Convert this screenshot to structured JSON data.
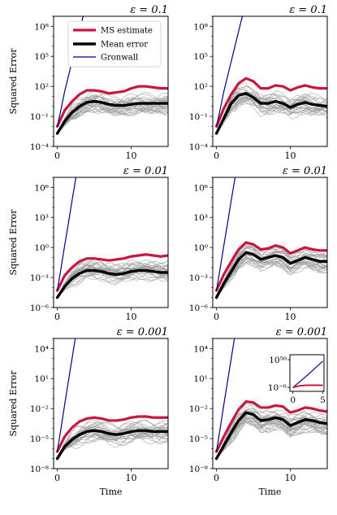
{
  "figure": {
    "ylabel": "Squared Error",
    "xlabel": "Time",
    "legend": [
      "MS estimate",
      "Mean error",
      "Gronwall"
    ],
    "colors": {
      "ms": "#c8173f",
      "mean": "#000000",
      "gronwall": "#00008b",
      "traj": "#999999"
    }
  },
  "chart_data": [
    {
      "type": "line",
      "row": 0,
      "col": 0,
      "title": "ε = 0.1",
      "xlim": [
        -0.5,
        15
      ],
      "ylim_log10": [
        -4,
        9
      ],
      "xticks": [
        0,
        10
      ],
      "xticklabels": [
        "0",
        "10"
      ],
      "yticks_log10": [
        -4,
        -1,
        2,
        5,
        8
      ],
      "yticklabels": [
        "10⁻⁴",
        "10⁻¹",
        "10²",
        "10⁵",
        "10⁸"
      ],
      "legend": true,
      "ylabel": true,
      "xlabel": false,
      "series": [
        {
          "name": "MS estimate",
          "x": [
            0,
            1,
            2,
            3,
            4,
            5,
            6,
            7,
            8,
            9,
            10,
            11,
            12,
            13,
            14,
            15
          ],
          "log10_y": [
            -2.0,
            -0.4,
            0.5,
            1.2,
            1.6,
            1.6,
            1.5,
            1.3,
            1.4,
            1.5,
            1.8,
            2.0,
            2.0,
            1.9,
            1.8,
            1.8
          ]
        },
        {
          "name": "Mean error",
          "x": [
            0,
            1,
            2,
            3,
            4,
            5,
            6,
            7,
            8,
            9,
            10,
            11,
            12,
            13,
            14,
            15
          ],
          "log10_y": [
            -2.7,
            -1.5,
            -0.6,
            0.0,
            0.4,
            0.5,
            0.4,
            0.2,
            0.1,
            0.1,
            0.2,
            0.3,
            0.3,
            0.3,
            0.3,
            0.3
          ]
        },
        {
          "name": "Gronwall",
          "x": [
            0,
            0.5,
            1,
            1.5,
            2,
            2.5,
            3,
            3.5,
            4
          ],
          "log10_y": [
            -2.0,
            -0.3,
            1.5,
            3.0,
            4.5,
            6.0,
            7.5,
            9.0,
            10.5
          ]
        }
      ]
    },
    {
      "type": "line",
      "row": 0,
      "col": 1,
      "title": "ε = 0.1",
      "xlim": [
        -0.5,
        15
      ],
      "ylim_log10": [
        -4,
        9
      ],
      "xticks": [
        0,
        10
      ],
      "xticklabels": [
        "0",
        "10"
      ],
      "yticks_log10": [
        -4,
        -1,
        2,
        5,
        8
      ],
      "yticklabels": [
        "10⁻⁴",
        "10⁻¹",
        "10²",
        "10⁵",
        "10⁸"
      ],
      "legend": false,
      "ylabel": false,
      "xlabel": false,
      "series": [
        {
          "name": "MS estimate",
          "x": [
            0,
            1,
            2,
            3,
            4,
            5,
            6,
            7,
            8,
            9,
            10,
            11,
            12,
            13,
            14,
            15
          ],
          "log10_y": [
            -2.0,
            -0.2,
            1.2,
            2.3,
            2.8,
            2.5,
            1.8,
            1.8,
            2.1,
            2.0,
            1.6,
            1.9,
            2.1,
            1.9,
            1.8,
            1.8
          ]
        },
        {
          "name": "Mean error",
          "x": [
            0,
            1,
            2,
            3,
            4,
            5,
            6,
            7,
            8,
            9,
            10,
            11,
            12,
            13,
            14,
            15
          ],
          "log10_y": [
            -2.7,
            -1.2,
            0.3,
            1.1,
            1.3,
            0.9,
            0.3,
            0.3,
            0.5,
            0.3,
            -0.1,
            0.2,
            0.4,
            0.2,
            0.1,
            0.0
          ]
        },
        {
          "name": "Gronwall",
          "x": [
            0,
            0.5,
            1,
            1.5,
            2,
            2.5,
            3,
            3.5,
            4
          ],
          "log10_y": [
            -2.0,
            -0.3,
            1.5,
            3.0,
            4.5,
            6.0,
            7.5,
            9.0,
            10.5
          ]
        }
      ]
    },
    {
      "type": "line",
      "row": 1,
      "col": 0,
      "title": "ε = 0.01",
      "xlim": [
        -0.5,
        15
      ],
      "ylim_log10": [
        -6,
        7
      ],
      "xticks": [
        0,
        10
      ],
      "xticklabels": [
        "0",
        "10"
      ],
      "yticks_log10": [
        -6,
        -3,
        0,
        3,
        6
      ],
      "yticklabels": [
        "10⁻⁶",
        "10⁻³",
        "10⁰",
        "10³",
        "10⁶"
      ],
      "legend": false,
      "ylabel": true,
      "xlabel": false,
      "series": [
        {
          "name": "MS estimate",
          "x": [
            0,
            1,
            2,
            3,
            4,
            5,
            6,
            7,
            8,
            9,
            10,
            11,
            12,
            13,
            14,
            15
          ],
          "log10_y": [
            -4.3,
            -2.8,
            -2.0,
            -1.4,
            -1.1,
            -1.1,
            -1.2,
            -1.3,
            -1.2,
            -1.1,
            -0.9,
            -0.8,
            -0.7,
            -0.8,
            -0.9,
            -0.8
          ]
        },
        {
          "name": "Mean error",
          "x": [
            0,
            1,
            2,
            3,
            4,
            5,
            6,
            7,
            8,
            9,
            10,
            11,
            12,
            13,
            14,
            15
          ],
          "log10_y": [
            -5.0,
            -3.9,
            -3.1,
            -2.6,
            -2.3,
            -2.3,
            -2.4,
            -2.6,
            -2.7,
            -2.6,
            -2.4,
            -2.3,
            -2.3,
            -2.4,
            -2.5,
            -2.5
          ]
        },
        {
          "name": "Gronwall",
          "x": [
            0,
            0.5,
            1,
            1.5,
            2,
            2.5,
            3
          ],
          "log10_y": [
            -4.3,
            -2.1,
            0.2,
            2.4,
            4.7,
            6.9,
            9.2
          ]
        }
      ]
    },
    {
      "type": "line",
      "row": 1,
      "col": 1,
      "title": "ε = 0.01",
      "xlim": [
        -0.5,
        15
      ],
      "ylim_log10": [
        -6,
        7
      ],
      "xticks": [
        0,
        10
      ],
      "xticklabels": [
        "0",
        "10"
      ],
      "yticks_log10": [
        -6,
        -3,
        0,
        3,
        6
      ],
      "yticklabels": [
        "10⁻⁶",
        "10⁻³",
        "10⁰",
        "10³",
        "10⁶"
      ],
      "legend": false,
      "ylabel": false,
      "xlabel": false,
      "series": [
        {
          "name": "MS estimate",
          "x": [
            0,
            1,
            2,
            3,
            4,
            5,
            6,
            7,
            8,
            9,
            10,
            11,
            12,
            13,
            14,
            15
          ],
          "log10_y": [
            -4.3,
            -2.7,
            -1.4,
            -0.2,
            0.5,
            0.3,
            -0.2,
            -0.1,
            0.2,
            0.0,
            -0.6,
            -0.3,
            0.0,
            -0.2,
            -0.3,
            -0.3
          ]
        },
        {
          "name": "Mean error",
          "x": [
            0,
            1,
            2,
            3,
            4,
            5,
            6,
            7,
            8,
            9,
            10,
            11,
            12,
            13,
            14,
            15
          ],
          "log10_y": [
            -5.0,
            -3.6,
            -2.4,
            -1.2,
            -0.5,
            -0.7,
            -1.2,
            -1.0,
            -0.8,
            -1.0,
            -1.6,
            -1.3,
            -1.0,
            -1.2,
            -1.4,
            -1.4
          ]
        },
        {
          "name": "Gronwall",
          "x": [
            0,
            0.5,
            1,
            1.5,
            2,
            2.5,
            3
          ],
          "log10_y": [
            -4.3,
            -2.1,
            0.2,
            2.4,
            4.7,
            6.9,
            9.2
          ]
        }
      ]
    },
    {
      "type": "line",
      "row": 2,
      "col": 0,
      "title": "ε = 0.001",
      "xlim": [
        -0.5,
        15
      ],
      "ylim_log10": [
        -8,
        5
      ],
      "xticks": [
        0,
        10
      ],
      "xticklabels": [
        "0",
        "10"
      ],
      "yticks_log10": [
        -8,
        -5,
        -2,
        1,
        4
      ],
      "yticklabels": [
        "10⁻⁸",
        "10⁻⁵",
        "10⁻²",
        "10¹",
        "10⁴"
      ],
      "legend": false,
      "ylabel": true,
      "xlabel": true,
      "series": [
        {
          "name": "MS estimate",
          "x": [
            0,
            1,
            2,
            3,
            4,
            5,
            6,
            7,
            8,
            9,
            10,
            11,
            12,
            13,
            14,
            15
          ],
          "log10_y": [
            -6.3,
            -4.8,
            -3.9,
            -3.3,
            -3.0,
            -2.9,
            -3.0,
            -3.2,
            -3.2,
            -3.1,
            -2.9,
            -2.8,
            -2.8,
            -2.9,
            -2.9,
            -2.9
          ]
        },
        {
          "name": "Mean error",
          "x": [
            0,
            1,
            2,
            3,
            4,
            5,
            6,
            7,
            8,
            9,
            10,
            11,
            12,
            13,
            14,
            15
          ],
          "log10_y": [
            -7.0,
            -5.8,
            -5.1,
            -4.6,
            -4.3,
            -4.2,
            -4.3,
            -4.5,
            -4.6,
            -4.5,
            -4.3,
            -4.2,
            -4.2,
            -4.3,
            -4.3,
            -4.3
          ]
        },
        {
          "name": "Gronwall",
          "x": [
            0,
            0.5,
            1,
            1.5,
            2,
            2.5,
            3,
            3.5
          ],
          "log10_y": [
            -6.3,
            -4.0,
            -1.6,
            0.7,
            3.0,
            5.3,
            7.6,
            10.0
          ]
        }
      ]
    },
    {
      "type": "line",
      "row": 2,
      "col": 1,
      "title": "ε = 0.001",
      "xlim": [
        -0.5,
        15
      ],
      "ylim_log10": [
        -8,
        5
      ],
      "xticks": [
        0,
        10
      ],
      "xticklabels": [
        "0",
        "10"
      ],
      "yticks_log10": [
        -8,
        -5,
        -2,
        1,
        4
      ],
      "yticklabels": [
        "10⁻⁸",
        "10⁻⁵",
        "10⁻²",
        "10¹",
        "10⁴"
      ],
      "legend": false,
      "ylabel": false,
      "xlabel": true,
      "series": [
        {
          "name": "MS estimate",
          "x": [
            0,
            1,
            2,
            3,
            4,
            5,
            6,
            7,
            8,
            9,
            10,
            11,
            12,
            13,
            14,
            15
          ],
          "log10_y": [
            -6.3,
            -4.8,
            -3.4,
            -2.1,
            -1.3,
            -1.4,
            -1.9,
            -1.9,
            -1.7,
            -1.8,
            -2.4,
            -2.2,
            -1.9,
            -2.0,
            -2.2,
            -2.3
          ]
        },
        {
          "name": "Mean error",
          "x": [
            0,
            1,
            2,
            3,
            4,
            5,
            6,
            7,
            8,
            9,
            10,
            11,
            12,
            13,
            14,
            15
          ],
          "log10_y": [
            -7.0,
            -5.7,
            -4.4,
            -3.2,
            -2.4,
            -2.6,
            -3.2,
            -3.1,
            -2.9,
            -3.1,
            -3.7,
            -3.4,
            -3.1,
            -3.2,
            -3.4,
            -3.5
          ]
        },
        {
          "name": "Gronwall",
          "x": [
            0,
            0.5,
            1,
            1.5,
            2,
            2.5,
            3,
            3.5
          ],
          "log10_y": [
            -6.3,
            -4.0,
            -1.6,
            0.7,
            3.0,
            5.3,
            7.6,
            10.0
          ]
        }
      ],
      "inset": {
        "xlim": [
          -0.5,
          5.2
        ],
        "ylim_log10": [
          -14,
          60
        ],
        "xticks": [
          0,
          5
        ],
        "xticklabels": [
          "0",
          "5"
        ],
        "yticks_log10": [
          -6,
          50
        ],
        "yticklabels": [
          "10⁻⁶",
          "10⁵⁰"
        ],
        "series": [
          {
            "name": "Gronwall",
            "x": [
              0,
              1,
              2,
              3,
              4,
              5
            ],
            "log10_y": [
              -6.3,
              4,
              14,
              25,
              36,
              47
            ]
          },
          {
            "name": "MS estimate",
            "x": [
              0,
              1,
              2,
              3,
              4,
              5
            ],
            "log10_y": [
              -6.3,
              -3.0,
              -1.8,
              -1.6,
              -1.7,
              -1.9
            ]
          }
        ]
      }
    }
  ]
}
